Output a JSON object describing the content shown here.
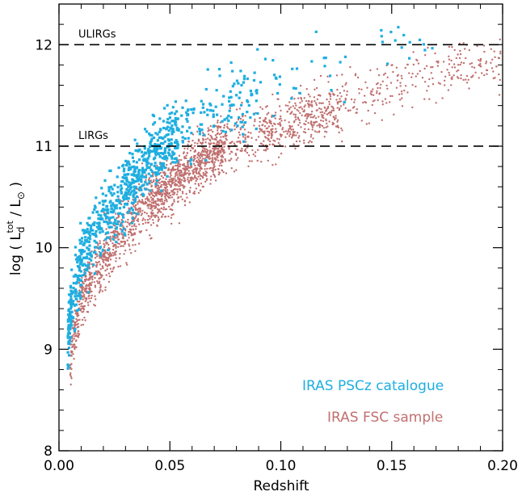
{
  "chart_data": {
    "type": "scatter",
    "xlabel": "Redshift",
    "ylabel_parts": {
      "prefix": "log  ( L",
      "sub": "d",
      "sup": "tot",
      "mid": " / L",
      "sun": "⊙",
      "suffix": " )"
    },
    "xlim": [
      0.0,
      0.2
    ],
    "ylim": [
      8,
      12.4
    ],
    "x_ticks": [
      "0.00",
      "0.05",
      "0.10",
      "0.15",
      "0.20"
    ],
    "y_ticks": [
      "8",
      "9",
      "10",
      "11",
      "12"
    ],
    "grid": false,
    "legend_placement": "bottom-right",
    "reference_lines": [
      {
        "label": "ULIRGs",
        "y": 12,
        "style": "dashed"
      },
      {
        "label": "LIRGs",
        "y": 11,
        "style": "dashed"
      }
    ],
    "series": [
      {
        "name": "IRAS FSC sample",
        "color": "#c0706f",
        "marker": "dot",
        "trend": [
          [
            0.002,
            8.2
          ],
          [
            0.005,
            8.9
          ],
          [
            0.01,
            9.5
          ],
          [
            0.02,
            9.9
          ],
          [
            0.03,
            10.2
          ],
          [
            0.04,
            10.45
          ],
          [
            0.05,
            10.6
          ],
          [
            0.06,
            10.8
          ],
          [
            0.07,
            10.95
          ],
          [
            0.08,
            11.05
          ],
          [
            0.1,
            11.2
          ],
          [
            0.12,
            11.35
          ],
          [
            0.15,
            11.6
          ],
          [
            0.18,
            11.8
          ],
          [
            0.2,
            11.85
          ]
        ],
        "count_approx": 2300
      },
      {
        "name": "IRAS PSCz catalogue",
        "color": "#1eaee0",
        "marker": "square",
        "trend": [
          [
            0.002,
            8.8
          ],
          [
            0.005,
            9.4
          ],
          [
            0.01,
            9.9
          ],
          [
            0.015,
            10.15
          ],
          [
            0.02,
            10.35
          ],
          [
            0.03,
            10.6
          ],
          [
            0.04,
            10.9
          ],
          [
            0.05,
            11.1
          ],
          [
            0.06,
            11.3
          ],
          [
            0.08,
            11.5
          ],
          [
            0.1,
            11.7
          ],
          [
            0.16,
            12.1
          ]
        ],
        "count_approx": 900
      }
    ]
  }
}
